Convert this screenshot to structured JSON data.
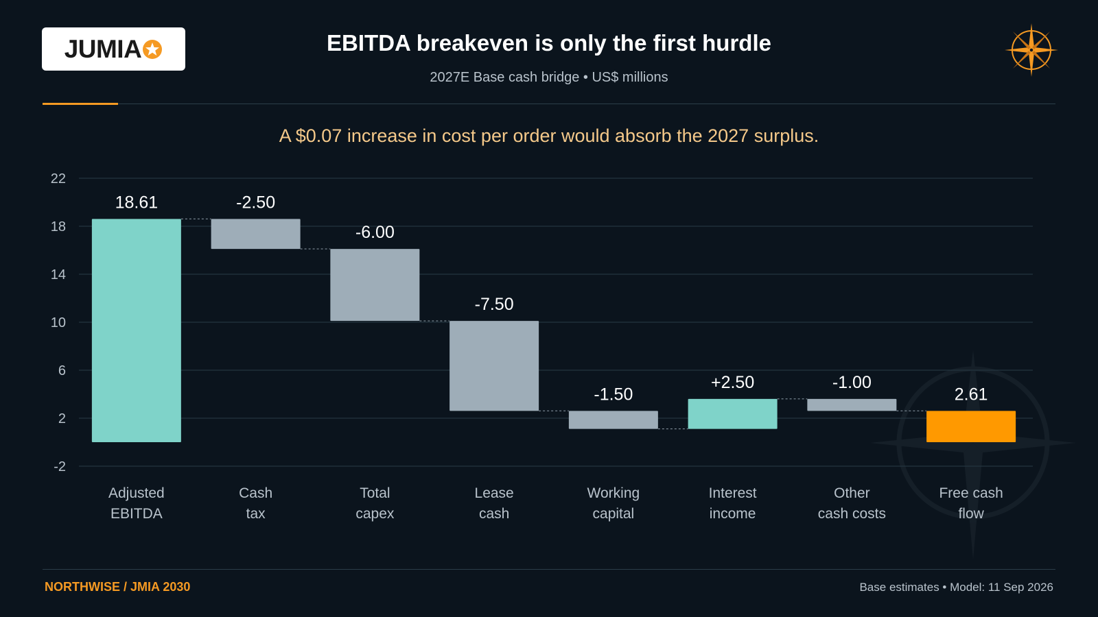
{
  "logo": {
    "text": "JUMIA"
  },
  "header": {
    "title": "EBITDA breakeven is only the first hurdle",
    "subtitle": "2027E Base cash bridge • US$ millions"
  },
  "headline": "A $0.07 increase in cost per order would absorb the 2027 surplus.",
  "footer": {
    "left": "NORTHWISE / JMIA 2030",
    "right": "Base estimates • Model: 11 Sep 2026"
  },
  "colors": {
    "positive": "#7fd3c9",
    "negative": "#9eadb8",
    "total": "#ff9900",
    "accent": "#f59a23"
  },
  "chart_data": {
    "type": "bar",
    "subtype": "waterfall",
    "ylim": [
      -2,
      22
    ],
    "yticks": [
      22,
      18,
      14,
      10,
      6,
      2,
      -2
    ],
    "grid": true,
    "steps": [
      {
        "category": [
          "Adjusted",
          "EBITDA"
        ],
        "value": 18.61,
        "label": "18.61",
        "kind": "total"
      },
      {
        "category": [
          "Cash",
          "tax"
        ],
        "value": -2.5,
        "label": "-2.50",
        "kind": "delta"
      },
      {
        "category": [
          "Total",
          "capex"
        ],
        "value": -6.0,
        "label": "-6.00",
        "kind": "delta"
      },
      {
        "category": [
          "Lease",
          "cash"
        ],
        "value": -7.5,
        "label": "-7.50",
        "kind": "delta"
      },
      {
        "category": [
          "Working",
          "capital"
        ],
        "value": -1.5,
        "label": "-1.50",
        "kind": "delta"
      },
      {
        "category": [
          "Interest",
          "income"
        ],
        "value": 2.5,
        "label": "+2.50",
        "kind": "delta"
      },
      {
        "category": [
          "Other",
          "cash costs"
        ],
        "value": -1.0,
        "label": "-1.00",
        "kind": "delta"
      },
      {
        "category": [
          "Free cash",
          "flow"
        ],
        "value": 2.61,
        "label": "2.61",
        "kind": "result"
      }
    ]
  }
}
